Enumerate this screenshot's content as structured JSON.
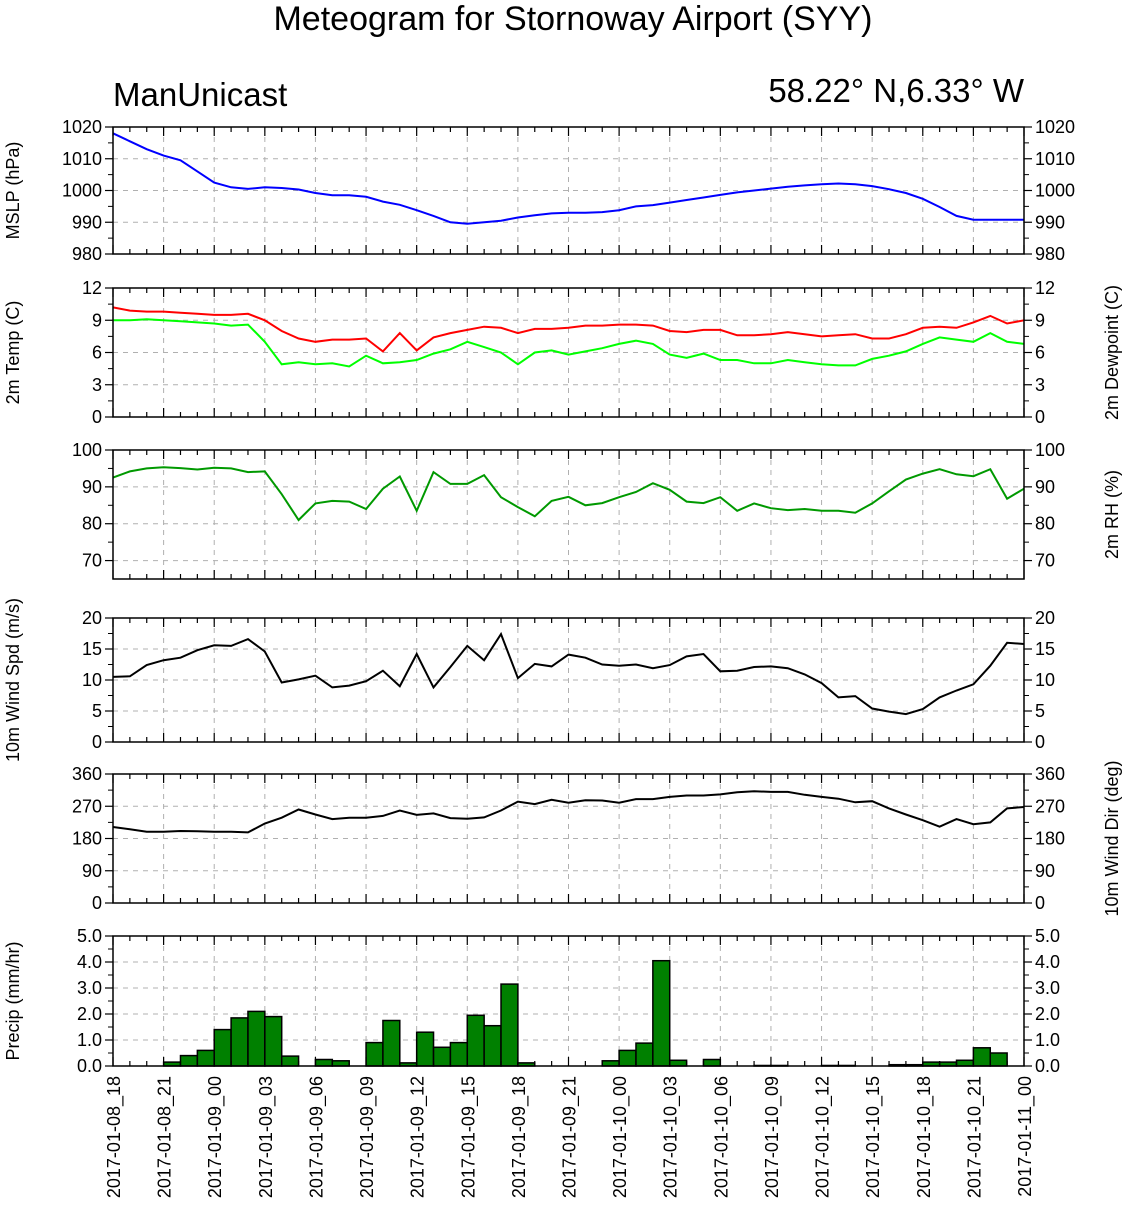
{
  "title": "Meteogram for Stornoway Airport (SYY)",
  "subtitle_left": "ManUnicast",
  "subtitle_right": "58.22° N,6.33° W",
  "chart_data": {
    "type": "line",
    "x_tick_labels": [
      "2017-01-08_18",
      "2017-01-08_21",
      "2017-01-09_00",
      "2017-01-09_03",
      "2017-01-09_06",
      "2017-01-09_09",
      "2017-01-09_12",
      "2017-01-09_15",
      "2017-01-09_18",
      "2017-01-09_21",
      "2017-01-10_00",
      "2017-01-10_03",
      "2017-01-10_06",
      "2017-01-10_09",
      "2017-01-10_12",
      "2017-01-10_15",
      "2017-01-10_18",
      "2017-01-10_21",
      "2017-01-11_00"
    ],
    "x_hours": [
      0,
      1,
      2,
      3,
      4,
      5,
      6,
      7,
      8,
      9,
      10,
      11,
      12,
      13,
      14,
      15,
      16,
      17,
      18,
      19,
      20,
      21,
      22,
      23,
      24,
      25,
      26,
      27,
      28,
      29,
      30,
      31,
      32,
      33,
      34,
      35,
      36,
      37,
      38,
      39,
      40,
      41,
      42,
      43,
      44,
      45,
      46,
      47,
      48,
      49,
      50,
      51,
      52,
      53,
      54
    ],
    "panels": [
      {
        "ylabel_left": "MSLP (hPa)",
        "ylabel_right": "",
        "ylim": [
          980,
          1020
        ],
        "yticks": [
          "980",
          "990",
          "1000",
          "1010",
          "1020"
        ],
        "right_ticks": true,
        "series": [
          {
            "color": "#0000ff",
            "kind": "line",
            "values": [
              1018,
              1015.5,
              1013,
              1011,
              1009.5,
              1006,
              1002.5,
              1001,
              1000.5,
              1001,
              1000.8,
              1000.3,
              999.2,
              998.5,
              998.5,
              998,
              996.5,
              995.5,
              993.8,
              992,
              990,
              989.5,
              990,
              990.5,
              991.5,
              992.2,
              992.8,
              993,
              993,
              993.2,
              993.8,
              995,
              995.4,
              996.2,
              997,
              997.8,
              998.6,
              999.4,
              1000,
              1000.6,
              1001.2,
              1001.6,
              1002,
              1002.2,
              1002,
              1001.4,
              1000.4,
              999.2,
              997.4,
              994.8,
              992,
              990.8,
              990.8,
              990.8,
              990.8
            ]
          }
        ]
      },
      {
        "ylabel_left": "2m Temp (C)",
        "ylabel_right": "2m Dewpoint (C)",
        "ylim": [
          0,
          12
        ],
        "yticks": [
          "0",
          "3",
          "6",
          "9",
          "12"
        ],
        "right_ticks": true,
        "series": [
          {
            "color": "#ff0000",
            "kind": "line",
            "values": [
              10.2,
              9.9,
              9.8,
              9.8,
              9.7,
              9.6,
              9.5,
              9.5,
              9.6,
              9,
              8,
              7.3,
              7,
              7.2,
              7.2,
              7.3,
              6.1,
              7.8,
              6.2,
              7.4,
              7.8,
              8.1,
              8.4,
              8.3,
              7.8,
              8.2,
              8.2,
              8.3,
              8.5,
              8.5,
              8.6,
              8.6,
              8.5,
              8.0,
              7.9,
              8.1,
              8.1,
              7.6,
              7.6,
              7.7,
              7.9,
              7.7,
              7.5,
              7.6,
              7.7,
              7.3,
              7.3,
              7.7,
              8.3,
              8.4,
              8.3,
              8.8,
              9.4,
              8.7,
              9.0
            ]
          },
          {
            "color": "#00ff00",
            "kind": "line",
            "values": [
              9.0,
              9.0,
              9.1,
              9.0,
              8.9,
              8.8,
              8.7,
              8.5,
              8.6,
              7,
              4.9,
              5.1,
              4.9,
              5.0,
              4.7,
              5.7,
              5.0,
              5.1,
              5.3,
              5.9,
              6.3,
              7,
              6.5,
              6,
              4.9,
              6,
              6.2,
              5.8,
              6.1,
              6.4,
              6.8,
              7.1,
              6.8,
              5.8,
              5.5,
              5.9,
              5.3,
              5.3,
              5.0,
              5.0,
              5.3,
              5.1,
              4.9,
              4.8,
              4.8,
              5.4,
              5.7,
              6.1,
              6.8,
              7.4,
              7.2,
              7.0,
              7.8,
              7.0,
              6.8
            ]
          }
        ]
      },
      {
        "ylabel_left": "",
        "ylabel_right": "2m RH (%)",
        "ylim": [
          65,
          100
        ],
        "yticks": [
          "70",
          "80",
          "90",
          "100"
        ],
        "ytick_values": [
          70,
          80,
          90,
          100
        ],
        "right_ticks": true,
        "series": [
          {
            "color": "#009900",
            "kind": "line",
            "values": [
              92.5,
              94.2,
              95,
              95.3,
              95.1,
              94.7,
              95.2,
              95,
              94,
              94.2,
              88,
              81,
              85.5,
              86.2,
              86,
              84,
              89.5,
              92.8,
              83.5,
              94,
              90.8,
              90.8,
              93.2,
              87.2,
              84.5,
              82.0,
              86.2,
              87.3,
              85,
              85.6,
              87.2,
              88.6,
              91,
              89.2,
              86,
              85.6,
              87.2,
              83.5,
              85.5,
              84.2,
              83.7,
              84,
              83.5,
              83.5,
              83,
              85.5,
              88.8,
              92,
              93.6,
              94.8,
              93.4,
              92.9,
              94.8,
              86.8,
              89.5
            ]
          }
        ]
      },
      {
        "ylabel_left": "10m Wind Spd (m/s)",
        "ylabel_right": "",
        "ylim": [
          0,
          20
        ],
        "yticks": [
          "0",
          "5",
          "10",
          "15",
          "20"
        ],
        "right_ticks": true,
        "series": [
          {
            "color": "#000000",
            "kind": "line",
            "values": [
              10.5,
              10.6,
              12.4,
              13.2,
              13.6,
              14.8,
              15.6,
              15.5,
              16.6,
              14.6,
              9.6,
              10.1,
              10.7,
              8.8,
              9.1,
              9.8,
              11.5,
              9.0,
              14.2,
              8.8,
              12.1,
              15.5,
              13.2,
              17.4,
              10.3,
              12.6,
              12.2,
              14.1,
              13.6,
              12.5,
              12.3,
              12.5,
              11.9,
              12.4,
              13.8,
              14.2,
              11.4,
              11.5,
              12.1,
              12.2,
              11.9,
              10.9,
              9.5,
              7.2,
              7.4,
              5.4,
              4.9,
              4.5,
              5.3,
              7.2,
              8.3,
              9.3,
              12.3,
              16.0,
              15.8
            ]
          }
        ]
      },
      {
        "ylabel_left": "",
        "ylabel_right": "10m Wind Dir (deg)",
        "ylim": [
          0,
          360
        ],
        "yticks": [
          "0",
          "90",
          "180",
          "270",
          "360"
        ],
        "right_ticks": true,
        "series": [
          {
            "color": "#000000",
            "kind": "line",
            "values": [
              212,
              206,
              199,
              199,
              201,
              200,
              199,
              199,
              197,
              222,
              238,
              261,
              247,
              234,
              238,
              238,
              243,
              258,
              246,
              250,
              237,
              235,
              239,
              258,
              283,
              276,
              288,
              280,
              287,
              286,
              280,
              290,
              290,
              296,
              300,
              300,
              303,
              309,
              312,
              310,
              310,
              302,
              296,
              291,
              281,
              284,
              264,
              247,
              231,
              213,
              234,
              220,
              225,
              264,
              268
            ]
          }
        ]
      },
      {
        "ylabel_left": "Precip (mm/hr)",
        "ylabel_right": "",
        "ylim": [
          0,
          5
        ],
        "yticks": [
          "0.0",
          "1.0",
          "2.0",
          "3.0",
          "4.0",
          "5.0"
        ],
        "right_ticks": true,
        "series": [
          {
            "color": "#008000",
            "kind": "bar",
            "values": [
              0,
              0,
              0,
              0.15,
              0.4,
              0.6,
              1.4,
              1.85,
              2.1,
              1.9,
              0.38,
              0,
              0.25,
              0.2,
              0,
              0.9,
              1.75,
              0.12,
              1.3,
              0.72,
              0.9,
              1.95,
              1.55,
              3.15,
              0.12,
              0,
              0,
              0,
              0,
              0.2,
              0.6,
              0.88,
              4.05,
              0.22,
              0,
              0.25,
              0,
              0,
              0.02,
              0.02,
              0,
              0,
              0.02,
              0.02,
              0,
              0,
              0.05,
              0.05,
              0.15,
              0.15,
              0.22,
              0.7,
              0.5,
              0
            ]
          }
        ]
      }
    ]
  }
}
